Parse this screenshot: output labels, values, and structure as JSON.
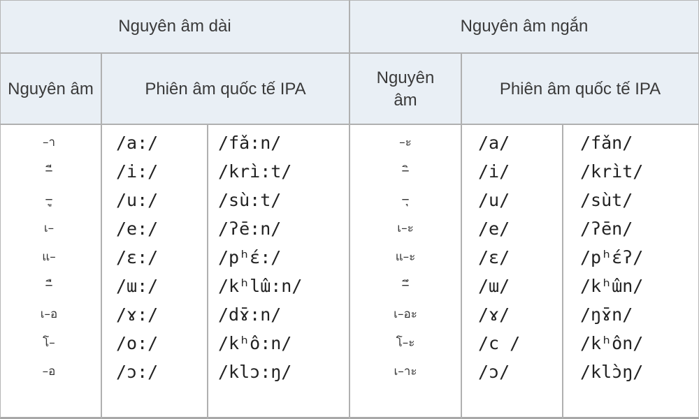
{
  "header": {
    "long_title": "Nguyên âm dài",
    "short_title": "Nguyên âm ngắn",
    "vowel_col": "Nguyên âm",
    "ipa_col": "Phiên âm quốc tế IPA"
  },
  "long": {
    "vowels": [
      "–า",
      "–ี",
      "–ู",
      "เ–",
      "แ–",
      "–ื",
      "เ–อ",
      "โ–",
      "–อ"
    ],
    "ipa": [
      "/a:/",
      "/i:/",
      "/u:/",
      "/e:/",
      "/ɛ:/",
      "/ɯ:/",
      "/ɤ:/",
      "/o:/",
      "/ɔ:/"
    ],
    "examples": [
      "/fǎ:n/",
      "/krì:t/",
      "/sù:t/",
      "/ʔē:n/",
      "/pʰɛ́:/",
      "/kʰlɯ̂:n/",
      "/dɤ̄:n/",
      "/kʰô:n/",
      "/klɔ:ŋ/"
    ]
  },
  "short": {
    "vowels": [
      "–ะ",
      "–ิ",
      "–ุ",
      "เ–ะ",
      "แ–ะ",
      "–ึ",
      "เ–อะ",
      "โ–ะ",
      "เ–าะ"
    ],
    "ipa": [
      "/a/",
      "/i/",
      "/u/",
      "/e/",
      "/ɛ/",
      "/ɯ/",
      "/ɤ/",
      "/c /",
      "/ɔ/"
    ],
    "examples": [
      "/fǎn/",
      "/krìt/",
      "/sùt/",
      "/ʔēn/",
      "/pʰɛ́ʔ/",
      "/kʰɯ̂n/",
      "/ŋɤ̄n/",
      "/kʰôn/",
      "/klɔ̀ŋ/"
    ]
  }
}
